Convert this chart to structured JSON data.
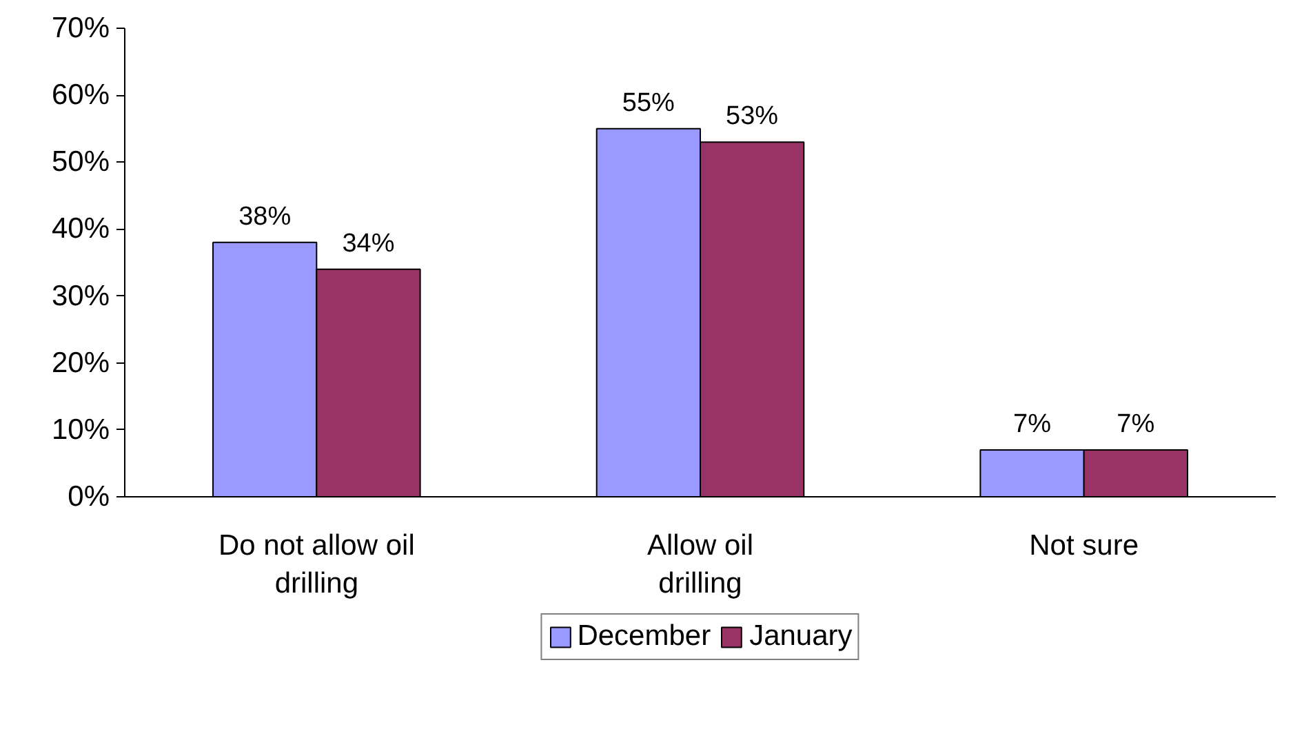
{
  "chart_data": {
    "type": "bar",
    "categories": [
      "Do not allow oil drilling",
      "Allow oil drilling",
      "Not sure"
    ],
    "series": [
      {
        "name": "December",
        "color": "#9999ff",
        "values": [
          38,
          55,
          7
        ],
        "value_labels": [
          "38%",
          "55%",
          "7%"
        ]
      },
      {
        "name": "January",
        "color": "#993366",
        "values": [
          34,
          53,
          7
        ],
        "value_labels": [
          "34%",
          "53%",
          "7%"
        ]
      }
    ],
    "ylim": [
      0,
      70
    ],
    "yticks": [
      {
        "value": 0,
        "label": "0%"
      },
      {
        "value": 10,
        "label": "10%"
      },
      {
        "value": 20,
        "label": "20%"
      },
      {
        "value": 30,
        "label": "30%"
      },
      {
        "value": 40,
        "label": "40%"
      },
      {
        "value": 50,
        "label": "50%"
      },
      {
        "value": 60,
        "label": "60%"
      },
      {
        "value": 70,
        "label": "70%"
      }
    ],
    "grid": false,
    "legend": "bottom"
  }
}
